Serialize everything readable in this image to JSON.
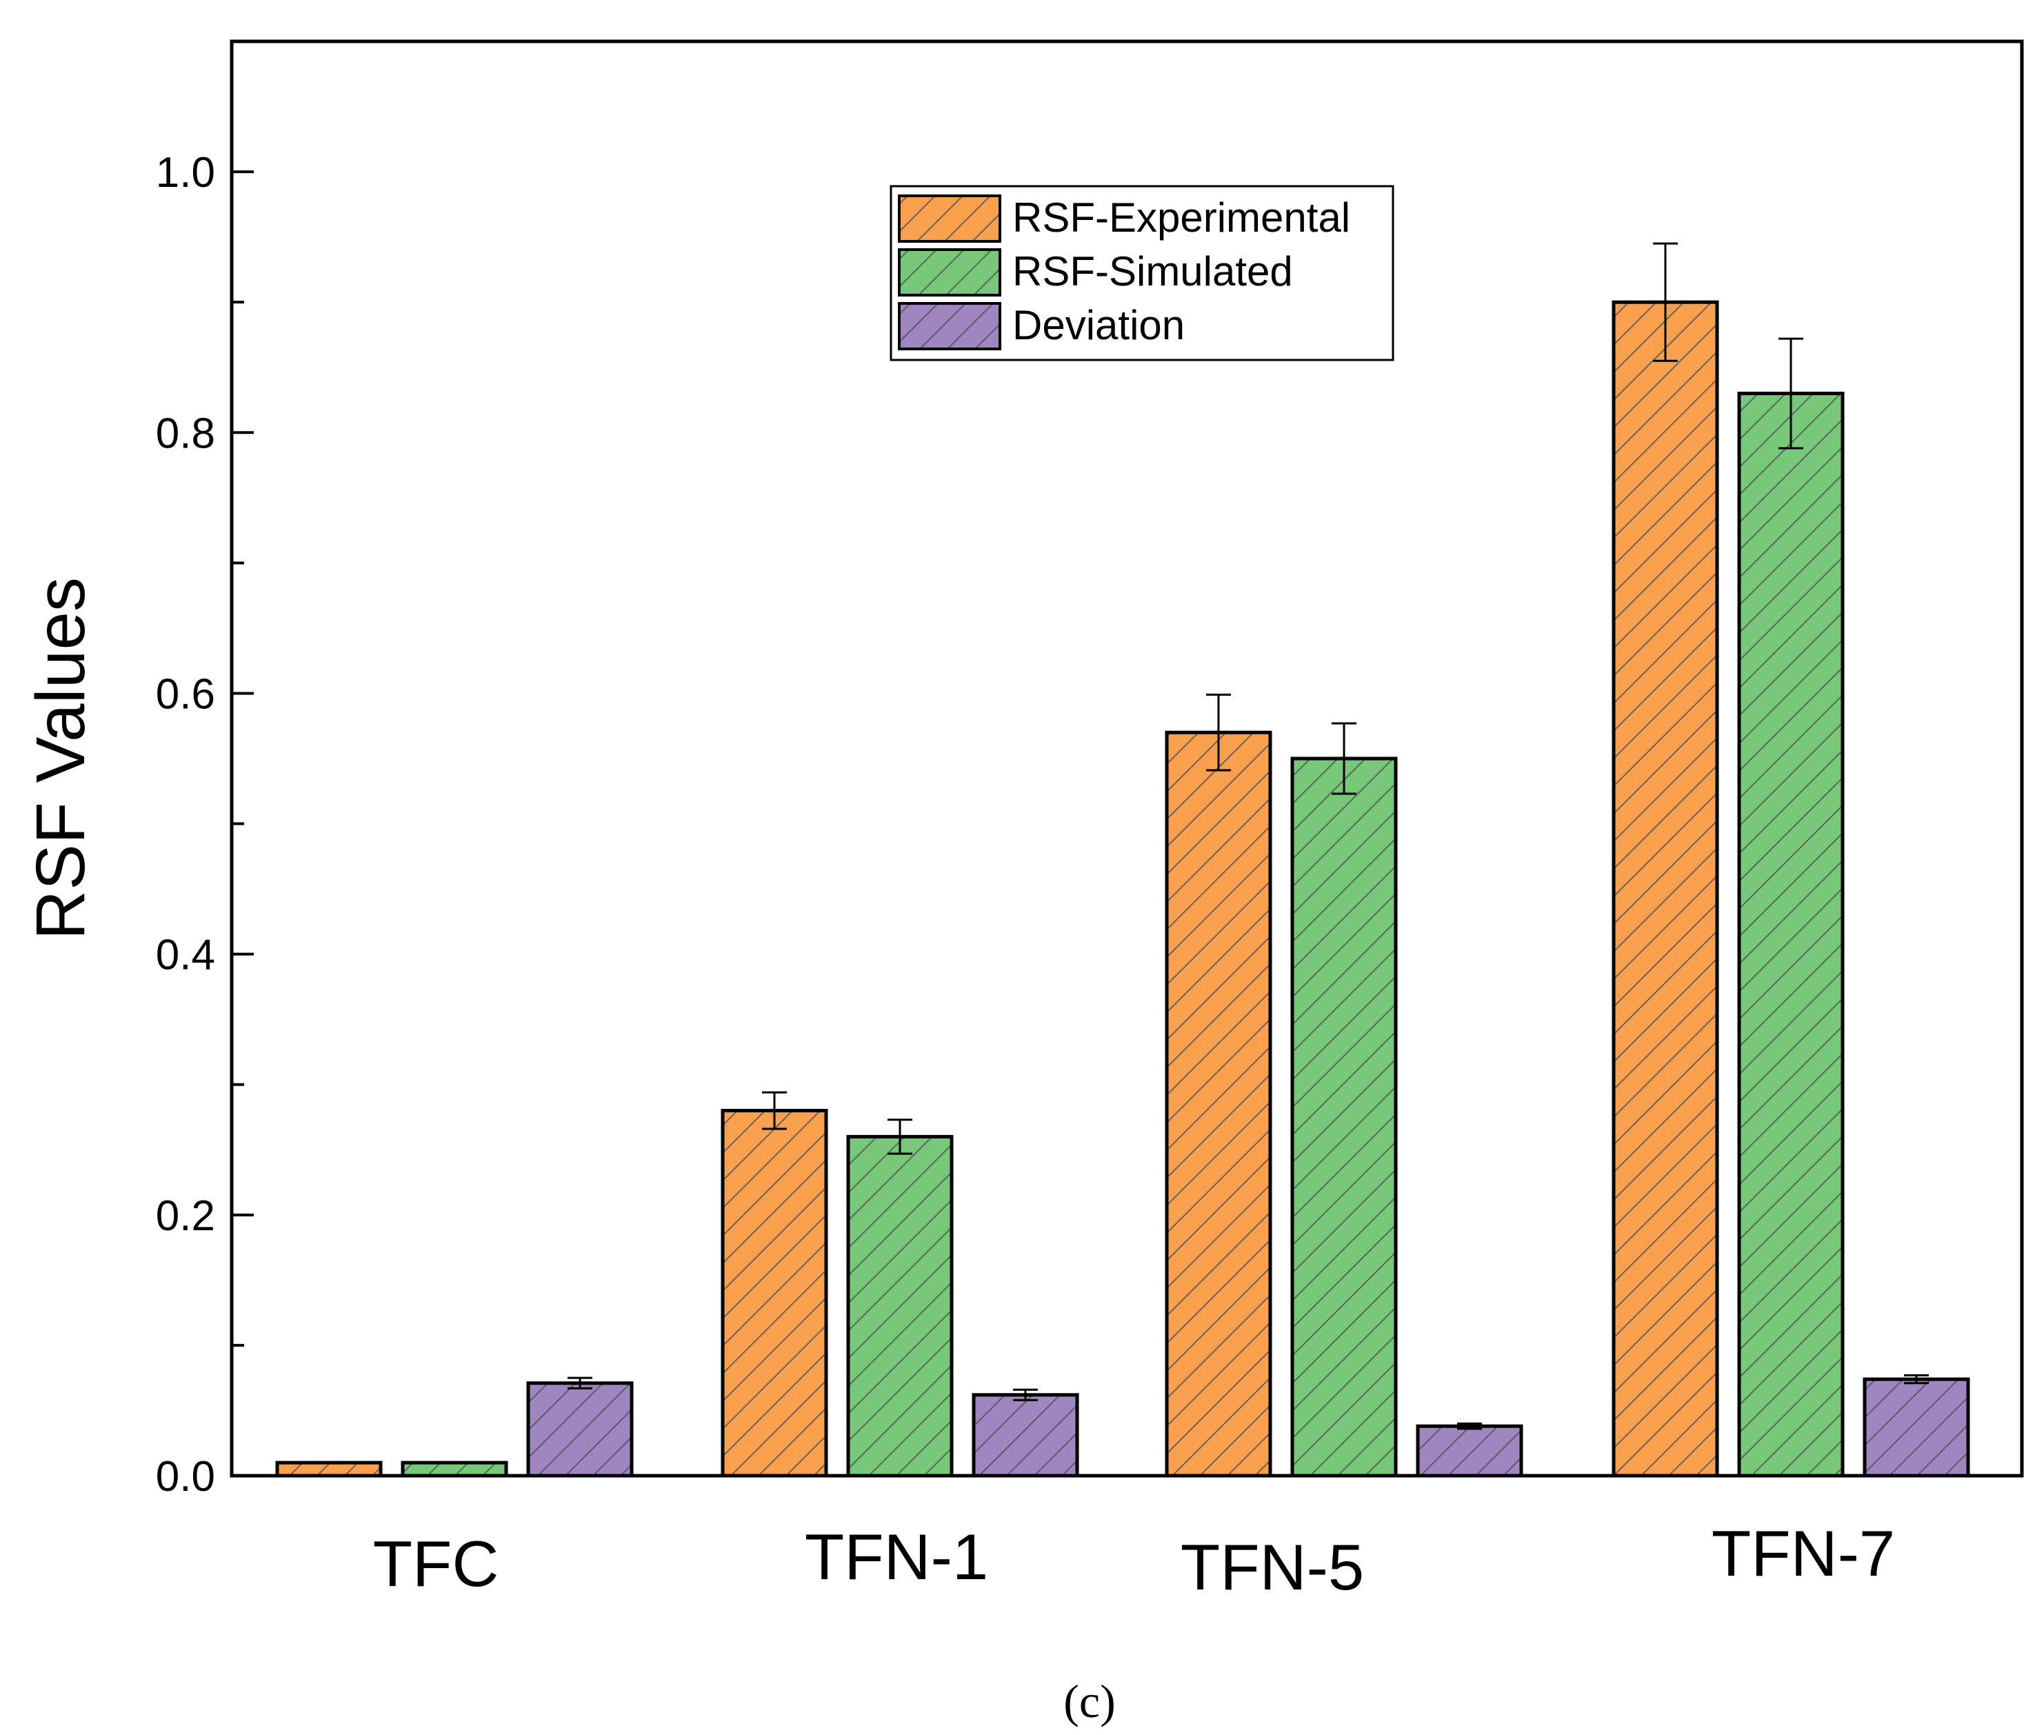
{
  "chart_data": {
    "type": "bar",
    "title": "",
    "xlabel": "",
    "ylabel": "RSF Values",
    "ylim": [
      0,
      1.1
    ],
    "yticks": [
      "0.0",
      "0.2",
      "0.4",
      "0.6",
      "0.8",
      "1.0"
    ],
    "categories": [
      "TFC",
      "TFN-1",
      "TFN-5",
      "TFN-7"
    ],
    "series": [
      {
        "name": "RSF-Experimental",
        "color": "#f9a04e",
        "values": [
          0.01,
          0.28,
          0.57,
          0.9
        ],
        "errors": [
          0.0,
          0.014,
          0.029,
          0.045
        ]
      },
      {
        "name": "RSF-Simulated",
        "color": "#77c878",
        "values": [
          0.01,
          0.26,
          0.55,
          0.83
        ],
        "errors": [
          0.0,
          0.013,
          0.027,
          0.042
        ]
      },
      {
        "name": "Deviation",
        "color": "#9f86c0",
        "values": [
          0.071,
          0.062,
          0.038,
          0.074
        ],
        "errors": [
          0.004,
          0.004,
          0.002,
          0.003
        ]
      }
    ],
    "legend_position": "top-center",
    "grid": false
  },
  "caption": "(c)"
}
